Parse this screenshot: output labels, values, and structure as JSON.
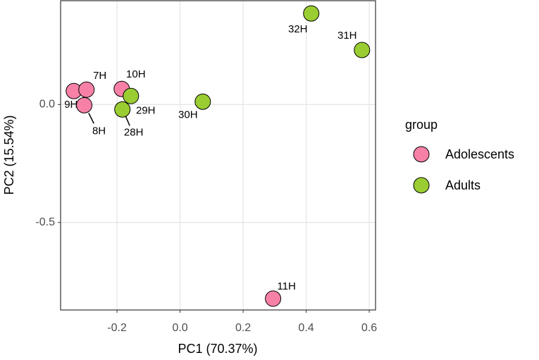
{
  "chart_data": {
    "type": "scatter",
    "x_label": "PC1 (70.37%)",
    "y_label": "PC2 (15.54%)",
    "legend_title": "group",
    "xlim": [
      -0.379,
      0.62
    ],
    "ylim": [
      -0.871,
      0.44
    ],
    "xticks": [
      {
        "value": -0.2,
        "label": "-0.2"
      },
      {
        "value": 0,
        "label": "0.0"
      },
      {
        "value": 0.2,
        "label": "0.2"
      },
      {
        "value": 0.4,
        "label": "0.4"
      },
      {
        "value": 0.6,
        "label": "0.6"
      }
    ],
    "yticks": [
      {
        "value": -0.5,
        "label": "-0.5"
      },
      {
        "value": 0,
        "label": "0.0"
      }
    ],
    "grid": true,
    "series": [
      {
        "name": "Adolescents",
        "color": "#f781a6",
        "labels": [
          "9H",
          "7H",
          "8H",
          "10H",
          "11H"
        ],
        "x": [
          -0.337,
          -0.297,
          -0.304,
          -0.185,
          0.295
        ],
        "values": [
          0.057,
          0.063,
          -0.003,
          0.066,
          -0.823
        ]
      },
      {
        "name": "Adults",
        "color": "#9acd32",
        "labels": [
          "29H",
          "28H",
          "30H",
          "32H",
          "31H"
        ],
        "x": [
          -0.156,
          -0.183,
          0.072,
          0.416,
          0.577
        ],
        "values": [
          0.036,
          -0.021,
          0.012,
          0.386,
          0.231
        ]
      }
    ]
  }
}
